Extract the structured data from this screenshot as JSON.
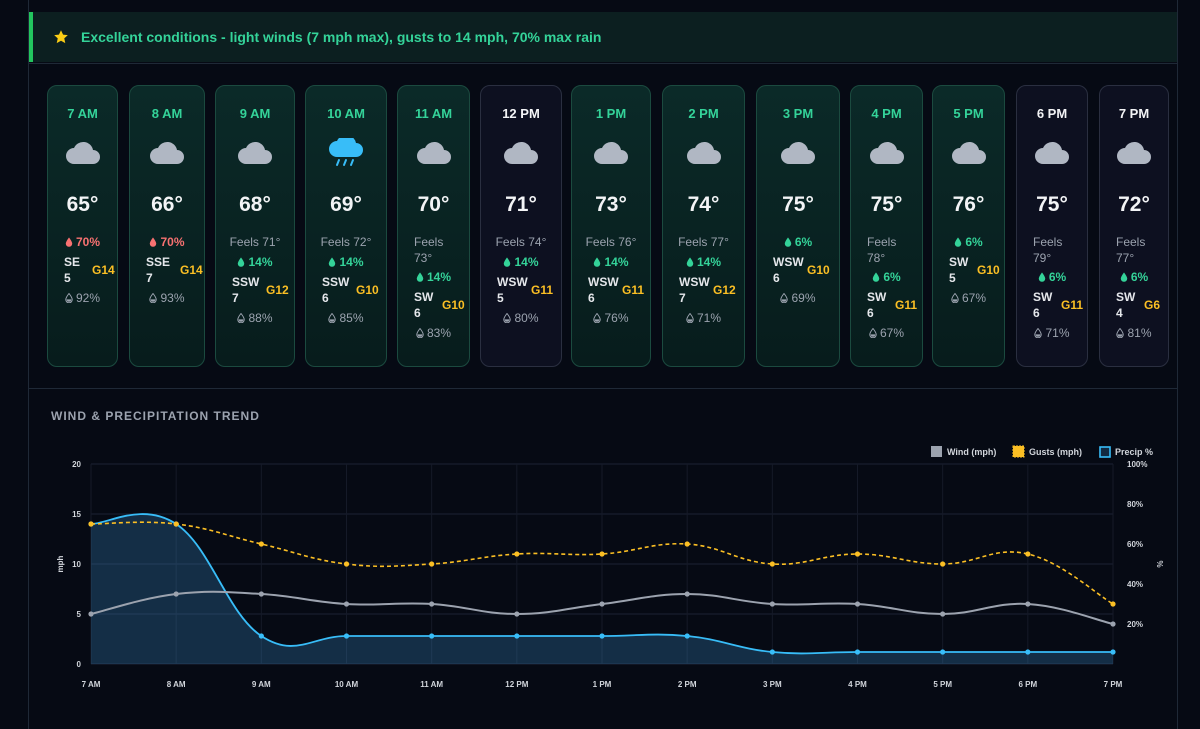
{
  "banner": {
    "icon": "star-icon",
    "text": "Excellent conditions - light winds (7 mph max), gusts to 14 mph, 70% max rain"
  },
  "hours": [
    {
      "hour": "7 AM",
      "icon": "cloud-icon",
      "temp": "65°",
      "day": true,
      "lines": [
        {
          "type": "rain-red",
          "text": "70%"
        },
        {
          "type": "wind",
          "dir": "SE",
          "speed": "5",
          "gust": "G14"
        },
        {
          "type": "humidity",
          "text": "92%"
        }
      ]
    },
    {
      "hour": "8 AM",
      "icon": "cloud-icon",
      "temp": "66°",
      "day": true,
      "lines": [
        {
          "type": "rain-red",
          "text": "70%"
        },
        {
          "type": "wind",
          "dir": "SSE",
          "speed": "7",
          "gust": "G14"
        },
        {
          "type": "humidity",
          "text": "93%"
        }
      ]
    },
    {
      "hour": "9 AM",
      "icon": "cloud-icon",
      "temp": "68°",
      "day": true,
      "lines": [
        {
          "type": "feels",
          "text": "Feels 71°"
        },
        {
          "type": "rain-green",
          "text": "14%"
        },
        {
          "type": "wind",
          "dir": "SSW",
          "speed": "7",
          "gust": "G12"
        },
        {
          "type": "humidity",
          "text": "88%"
        }
      ]
    },
    {
      "hour": "10 AM",
      "icon": "rain-cloud-icon",
      "temp": "69°",
      "day": true,
      "lines": [
        {
          "type": "feels",
          "text": "Feels 72°"
        },
        {
          "type": "rain-green",
          "text": "14%"
        },
        {
          "type": "wind",
          "dir": "SSW",
          "speed": "6",
          "gust": "G10"
        },
        {
          "type": "humidity",
          "text": "85%"
        }
      ]
    },
    {
      "hour": "11 AM",
      "icon": "cloud-icon",
      "temp": "70°",
      "day": true,
      "lines": [
        {
          "type": "feels-split",
          "a": "Feels",
          "b": "73°"
        },
        {
          "type": "rain-green",
          "text": "14%"
        },
        {
          "type": "wind",
          "dir": "SW",
          "speed": "6",
          "gust": "G10"
        },
        {
          "type": "humidity",
          "text": "83%"
        }
      ]
    },
    {
      "hour": "12 PM",
      "icon": "cloud-icon",
      "temp": "71°",
      "day": false,
      "lines": [
        {
          "type": "feels",
          "text": "Feels 74°"
        },
        {
          "type": "rain-green",
          "text": "14%"
        },
        {
          "type": "wind",
          "dir": "WSW",
          "speed": "5",
          "gust": "G11"
        },
        {
          "type": "humidity",
          "text": "80%"
        }
      ]
    },
    {
      "hour": "1 PM",
      "icon": "cloud-icon",
      "temp": "73°",
      "day": true,
      "lines": [
        {
          "type": "feels",
          "text": "Feels 76°"
        },
        {
          "type": "rain-green",
          "text": "14%"
        },
        {
          "type": "wind",
          "dir": "WSW",
          "speed": "6",
          "gust": "G11"
        },
        {
          "type": "humidity",
          "text": "76%"
        }
      ]
    },
    {
      "hour": "2 PM",
      "icon": "cloud-icon",
      "temp": "74°",
      "day": true,
      "lines": [
        {
          "type": "feels",
          "text": "Feels 77°"
        },
        {
          "type": "rain-green",
          "text": "14%"
        },
        {
          "type": "wind",
          "dir": "WSW",
          "speed": "7",
          "gust": "G12"
        },
        {
          "type": "humidity",
          "text": "71%"
        }
      ]
    },
    {
      "hour": "3 PM",
      "icon": "cloud-icon",
      "temp": "75°",
      "day": true,
      "lines": [
        {
          "type": "rain-green",
          "text": "6%"
        },
        {
          "type": "wind",
          "dir": "WSW",
          "speed": "6",
          "gust": "G10"
        },
        {
          "type": "humidity",
          "text": "69%"
        }
      ]
    },
    {
      "hour": "4 PM",
      "icon": "cloud-icon",
      "temp": "75°",
      "day": true,
      "lines": [
        {
          "type": "feels-split",
          "a": "Feels",
          "b": "78°"
        },
        {
          "type": "rain-green",
          "text": "6%"
        },
        {
          "type": "wind",
          "dir": "SW",
          "speed": "6",
          "gust": "G11"
        },
        {
          "type": "humidity",
          "text": "67%"
        }
      ]
    },
    {
      "hour": "5 PM",
      "icon": "cloud-icon",
      "temp": "76°",
      "day": true,
      "lines": [
        {
          "type": "rain-green",
          "text": "6%"
        },
        {
          "type": "wind",
          "dir": "SW",
          "speed": "5",
          "gust": "G10"
        },
        {
          "type": "humidity",
          "text": "67%"
        }
      ]
    },
    {
      "hour": "6 PM",
      "icon": "cloud-icon",
      "temp": "75°",
      "day": false,
      "lines": [
        {
          "type": "feels-split",
          "a": "Feels",
          "b": "79°"
        },
        {
          "type": "rain-green",
          "text": "6%"
        },
        {
          "type": "wind",
          "dir": "SW",
          "speed": "6",
          "gust": "G11"
        },
        {
          "type": "humidity",
          "text": "71%"
        }
      ]
    },
    {
      "hour": "7 PM",
      "icon": "cloud-icon",
      "temp": "72°",
      "day": false,
      "lines": [
        {
          "type": "feels-split",
          "a": "Feels",
          "b": "77°"
        },
        {
          "type": "rain-green",
          "text": "6%"
        },
        {
          "type": "wind",
          "dir": "SW",
          "speed": "4",
          "gust": "G6"
        },
        {
          "type": "humidity",
          "text": "81%"
        }
      ]
    }
  ],
  "trend": {
    "title": "WIND & PRECIPITATION TREND"
  },
  "colors": {
    "day_accent": "#34d399",
    "rain_red": "#f87171",
    "gust": "#fbbf24",
    "wind_line": "#9ca3af",
    "precip_line": "#38bdf8"
  },
  "chart_data": {
    "type": "line",
    "categories": [
      "7 AM",
      "8 AM",
      "9 AM",
      "10 AM",
      "11 AM",
      "12 PM",
      "1 PM",
      "2 PM",
      "3 PM",
      "4 PM",
      "5 PM",
      "6 PM",
      "7 PM"
    ],
    "series": [
      {
        "name": "Wind (mph)",
        "axis": "left",
        "style": "solid",
        "color": "#9ca3af",
        "values": [
          5,
          7,
          7,
          6,
          6,
          5,
          6,
          7,
          6,
          6,
          5,
          6,
          4
        ]
      },
      {
        "name": "Gusts (mph)",
        "axis": "left",
        "style": "dashed",
        "color": "#fbbf24",
        "values": [
          14,
          14,
          12,
          10,
          10,
          11,
          11,
          12,
          10,
          11,
          10,
          11,
          6
        ]
      },
      {
        "name": "Precip %",
        "axis": "right",
        "style": "area",
        "color": "#38bdf8",
        "values": [
          70,
          70,
          14,
          14,
          14,
          14,
          14,
          14,
          6,
          6,
          6,
          6,
          6
        ]
      }
    ],
    "ylabel": "mph",
    "ylim": [
      0,
      20
    ],
    "yticks": [
      "0",
      "5",
      "10",
      "15",
      "20"
    ],
    "y2label": "%",
    "y2lim": [
      0,
      100
    ],
    "y2ticks": [
      "20%",
      "40%",
      "60%",
      "80%",
      "100%"
    ],
    "grid": true,
    "legend": "top-right"
  }
}
